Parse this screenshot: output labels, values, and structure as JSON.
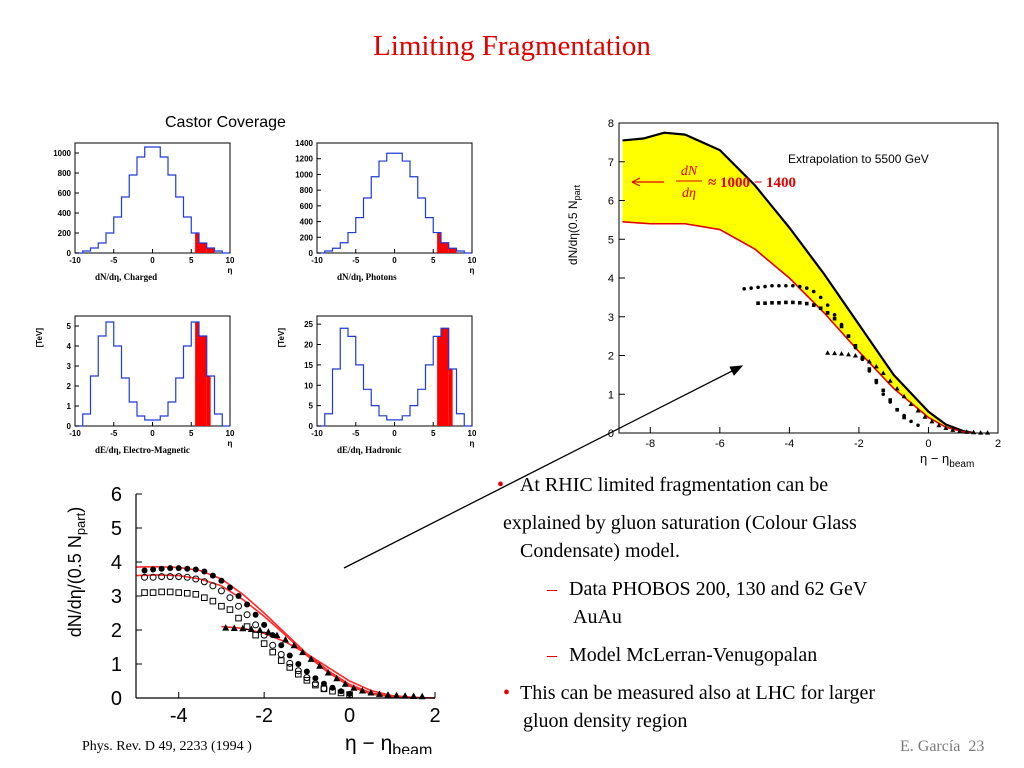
{
  "slide": {
    "title": "Limiting Fragmentation",
    "castor_label": "Castor Coverage",
    "reference": "Phys. Rev. D 49, 2233 (1994 )",
    "footer_author": "E. García",
    "footer_page": "23"
  },
  "bullets": {
    "b1_line1": " At RHIC limited fragmentation can be",
    "b1_line2": "explained by gluon saturation (Colour Glass",
    "b1_line3": "Condensate) model.",
    "s1_line1": "Data PHOBOS 200, 130 and 62 GeV",
    "s1_line2": "AuAu",
    "s2_line1": "Model McLerran-Venugopalan",
    "b2_line1": "This can be measured also at LHC for larger",
    "b2_line2": "gluon density region",
    "bullet_char": "•",
    "dash_char": "–"
  },
  "colors": {
    "title": "#e00000",
    "histogram": "#1f3bd6",
    "fill": "#ff0000",
    "band": "#ffff00",
    "model": "#ff2a2a"
  },
  "chart_data": [
    {
      "type": "histogram",
      "title": "",
      "xlabel": "dN/dη, Charged",
      "ylabel": "",
      "xunit": "η",
      "xlim": [
        -10,
        10
      ],
      "ylim": [
        0,
        1100
      ],
      "xticks": [
        "-10",
        "-5",
        "0",
        "5",
        "10"
      ],
      "yticks": [
        "0",
        "200",
        "400",
        "600",
        "800",
        "1000"
      ],
      "x": [
        -9.5,
        -8.5,
        -7.5,
        -6.5,
        -5.5,
        -4.5,
        -3.5,
        -2.5,
        -1.5,
        -0.5,
        0.5,
        1.5,
        2.5,
        3.5,
        4.5,
        5.5,
        6.5,
        7.5,
        8.5,
        9.5
      ],
      "values": [
        0,
        20,
        50,
        100,
        200,
        360,
        560,
        780,
        960,
        1060,
        1060,
        960,
        780,
        560,
        360,
        200,
        100,
        50,
        20,
        0
      ],
      "highlight_range": [
        5.5,
        8.0
      ]
    },
    {
      "type": "histogram",
      "title": "",
      "xlabel": "dN/dη, Photons",
      "ylabel": "",
      "xunit": "η",
      "xlim": [
        -10,
        10
      ],
      "ylim": [
        0,
        1400
      ],
      "xticks": [
        "-10",
        "-5",
        "0",
        "5",
        "10"
      ],
      "yticks": [
        "0",
        "200",
        "400",
        "600",
        "800",
        "1000",
        "1200",
        "1400"
      ],
      "x": [
        -9.5,
        -8.5,
        -7.5,
        -6.5,
        -5.5,
        -4.5,
        -3.5,
        -2.5,
        -1.5,
        -0.5,
        0.5,
        1.5,
        2.5,
        3.5,
        4.5,
        5.5,
        6.5,
        7.5,
        8.5,
        9.5
      ],
      "values": [
        0,
        25,
        60,
        130,
        260,
        450,
        700,
        970,
        1170,
        1270,
        1270,
        1170,
        970,
        700,
        450,
        260,
        130,
        60,
        25,
        0
      ],
      "highlight_range": [
        5.5,
        8.0
      ]
    },
    {
      "type": "histogram",
      "title": "",
      "xlabel": "dE/dη, Electro-Magnetic",
      "ylabel": "[TeV]",
      "xunit": "η",
      "xlim": [
        -10,
        10
      ],
      "ylim": [
        0,
        5.5
      ],
      "xticks": [
        "-10",
        "-5",
        "0",
        "5",
        "10"
      ],
      "yticks": [
        "0",
        "1",
        "2",
        "3",
        "4",
        "5"
      ],
      "x": [
        -9.5,
        -8.5,
        -7.5,
        -6.5,
        -5.5,
        -4.5,
        -3.5,
        -2.5,
        -1.5,
        -0.5,
        0.5,
        1.5,
        2.5,
        3.5,
        4.5,
        5.5,
        6.5,
        7.5,
        8.5,
        9.5
      ],
      "values": [
        0,
        0.6,
        2.5,
        4.5,
        5.2,
        4.0,
        2.4,
        1.2,
        0.5,
        0.3,
        0.3,
        0.5,
        1.2,
        2.4,
        4.0,
        5.2,
        4.5,
        2.5,
        0.6,
        0
      ],
      "highlight_range": [
        5.5,
        7.5
      ]
    },
    {
      "type": "histogram",
      "title": "",
      "xlabel": "dE/dη, Hadronic",
      "ylabel": "[TeV]",
      "xunit": "η",
      "xlim": [
        -10,
        10
      ],
      "ylim": [
        0,
        27
      ],
      "xticks": [
        "-10",
        "-5",
        "0",
        "5",
        "10"
      ],
      "yticks": [
        "0",
        "5",
        "10",
        "15",
        "20",
        "25"
      ],
      "x": [
        -9.5,
        -8.5,
        -7.5,
        -6.5,
        -5.5,
        -4.5,
        -3.5,
        -2.5,
        -1.5,
        -0.5,
        0.5,
        1.5,
        2.5,
        3.5,
        4.5,
        5.5,
        6.5,
        7.5,
        8.5,
        9.5
      ],
      "values": [
        0,
        3,
        14,
        24,
        22,
        15,
        9,
        5,
        2.5,
        1.5,
        1.5,
        2.5,
        5,
        9,
        15,
        22,
        24,
        14,
        3,
        0
      ],
      "highlight_range": [
        5.5,
        7.5
      ]
    },
    {
      "type": "line",
      "title": "",
      "annotation": "Extrapolation  to 5500 GeV",
      "formula": "≈ 1000 − 1400",
      "xlabel": "η − η",
      "xlabel_sub": "beam",
      "ylabel": "dN/dη(0.5 N",
      "ylabel_sub": "part",
      "xlim": [
        -8.9,
        2
      ],
      "ylim": [
        0,
        8
      ],
      "xticks": [
        "-8",
        "-6",
        "-4",
        "-2",
        "0",
        "2"
      ],
      "yticks": [
        "0",
        "1",
        "2",
        "3",
        "4",
        "5",
        "6",
        "7",
        "8"
      ],
      "series": [
        {
          "role": "upper",
          "x": [
            -8.8,
            -8.2,
            -7.6,
            -7.0,
            -6.0,
            -5.0,
            -4.0,
            -3.0,
            -2.0,
            -1.0,
            0.0,
            0.5,
            1.0,
            1.3
          ],
          "values": [
            7.55,
            7.6,
            7.75,
            7.7,
            7.3,
            6.4,
            5.3,
            4.1,
            2.8,
            1.5,
            0.55,
            0.22,
            0.05,
            0
          ]
        },
        {
          "role": "lower",
          "x": [
            -8.8,
            -8.0,
            -7.0,
            -6.0,
            -5.0,
            -4.0,
            -3.0,
            -2.0,
            -1.0,
            0.0,
            0.5,
            1.0,
            1.3
          ],
          "values": [
            5.45,
            5.4,
            5.4,
            5.25,
            4.75,
            4.0,
            3.1,
            2.1,
            1.15,
            0.4,
            0.15,
            0.03,
            0
          ]
        },
        {
          "role": "data-200",
          "x": [
            -5.3,
            -5.1,
            -4.9,
            -4.7,
            -4.5,
            -4.3,
            -4.1,
            -3.9,
            -3.7,
            -3.5,
            -3.3,
            -3.1,
            -2.9,
            -2.7,
            -2.5,
            -2.3,
            -2.1,
            -1.9,
            -1.7,
            -1.5,
            -1.3,
            -1.1,
            -0.9,
            -0.7,
            -0.5,
            -0.3
          ],
          "values": [
            3.72,
            3.74,
            3.76,
            3.78,
            3.8,
            3.8,
            3.8,
            3.8,
            3.78,
            3.74,
            3.65,
            3.5,
            3.3,
            3.05,
            2.8,
            2.5,
            2.2,
            1.9,
            1.6,
            1.3,
            1.0,
            0.8,
            0.6,
            0.45,
            0.3,
            0.2
          ]
        },
        {
          "role": "data-130",
          "x": [
            -4.9,
            -4.7,
            -4.5,
            -4.3,
            -4.1,
            -3.9,
            -3.7,
            -3.5,
            -3.3,
            -3.1,
            -2.9,
            -2.7,
            -2.5,
            -2.3,
            -2.1,
            -1.9,
            -1.7,
            -1.5,
            -1.3,
            -1.1,
            -0.9,
            -0.7
          ],
          "values": [
            3.35,
            3.35,
            3.36,
            3.36,
            3.37,
            3.37,
            3.36,
            3.34,
            3.3,
            3.22,
            3.1,
            2.95,
            2.75,
            2.5,
            2.25,
            1.95,
            1.65,
            1.35,
            1.1,
            0.85,
            0.6,
            0.4
          ]
        },
        {
          "role": "data-62",
          "x": [
            -2.9,
            -2.7,
            -2.5,
            -2.3,
            -2.1,
            -1.9,
            -1.7,
            -1.5,
            -1.3,
            -1.1,
            -0.9,
            -0.7,
            -0.5,
            -0.3,
            -0.1,
            0.1,
            0.3,
            0.5,
            0.7,
            0.9,
            1.1,
            1.3,
            1.5,
            1.7
          ],
          "values": [
            2.07,
            2.06,
            2.05,
            2.03,
            2.0,
            1.95,
            1.85,
            1.72,
            1.55,
            1.35,
            1.15,
            0.95,
            0.75,
            0.58,
            0.42,
            0.3,
            0.2,
            0.13,
            0.08,
            0.05,
            0.03,
            0.02,
            0.01,
            0.01
          ]
        }
      ]
    },
    {
      "type": "line",
      "title": "",
      "xlabel": "η − η",
      "xlabel_sub": "beam",
      "ylabel": "dN/dη/(0.5 N",
      "ylabel_sub": "part",
      "ylabel_close": ")",
      "xlim": [
        -5,
        2
      ],
      "ylim": [
        0,
        6
      ],
      "xticks": [
        "-4",
        "-2",
        "0",
        "2"
      ],
      "yticks": [
        "0",
        "1",
        "2",
        "3",
        "4",
        "5",
        "6"
      ],
      "series": [
        {
          "role": "model-200",
          "x": [
            -5.0,
            -4.5,
            -4.0,
            -3.5,
            -3.0,
            -2.5,
            -2.0,
            -1.5,
            -1.0,
            -0.5,
            0.0,
            0.5,
            1.0,
            1.5,
            2.0
          ],
          "values": [
            3.85,
            3.86,
            3.84,
            3.75,
            3.5,
            3.05,
            2.5,
            1.9,
            1.3,
            0.8,
            0.4,
            0.15,
            0.05,
            0.01,
            0
          ]
        },
        {
          "role": "model-130",
          "x": [
            -5.0,
            -4.5,
            -4.0,
            -3.5,
            -3.0,
            -2.5,
            -2.0,
            -1.5,
            -1.0,
            -0.5,
            0.0,
            0.5,
            1.0,
            1.5
          ],
          "values": [
            3.6,
            3.62,
            3.6,
            3.5,
            3.3,
            2.9,
            2.4,
            1.85,
            1.25,
            0.75,
            0.35,
            0.12,
            0.03,
            0
          ]
        },
        {
          "role": "model-62",
          "x": [
            -3.0,
            -2.5,
            -2.0,
            -1.5,
            -1.0,
            -0.5,
            0.0,
            0.5,
            1.0,
            1.5,
            2.0
          ],
          "values": [
            2.1,
            2.05,
            1.9,
            1.65,
            1.3,
            0.9,
            0.5,
            0.22,
            0.07,
            0.02,
            0
          ]
        },
        {
          "role": "data-200",
          "x": [
            -4.8,
            -4.6,
            -4.4,
            -4.2,
            -4.0,
            -3.8,
            -3.6,
            -3.4,
            -3.2,
            -3.0,
            -2.8,
            -2.6,
            -2.4,
            -2.2,
            -2.0,
            -1.8,
            -1.6,
            -1.4,
            -1.2,
            -1.0,
            -0.8,
            -0.6,
            -0.4,
            -0.2,
            0.0
          ],
          "values": [
            3.75,
            3.78,
            3.8,
            3.82,
            3.82,
            3.8,
            3.78,
            3.72,
            3.6,
            3.45,
            3.25,
            3.0,
            2.75,
            2.45,
            2.15,
            1.85,
            1.55,
            1.25,
            1.0,
            0.78,
            0.58,
            0.42,
            0.3,
            0.2,
            0.12
          ]
        },
        {
          "role": "data-130",
          "x": [
            -4.8,
            -4.6,
            -4.4,
            -4.2,
            -4.0,
            -3.8,
            -3.6,
            -3.4,
            -3.2,
            -3.0,
            -2.8,
            -2.6,
            -2.4,
            -2.2,
            -2.0,
            -1.8,
            -1.6,
            -1.4,
            -1.2,
            -1.0,
            -0.8,
            -0.6
          ],
          "values": [
            3.55,
            3.55,
            3.57,
            3.57,
            3.57,
            3.55,
            3.5,
            3.42,
            3.3,
            3.15,
            2.95,
            2.7,
            2.45,
            2.15,
            1.85,
            1.55,
            1.28,
            1.02,
            0.8,
            0.6,
            0.42,
            0.28
          ]
        },
        {
          "role": "data-open-squares",
          "x": [
            -4.8,
            -4.6,
            -4.4,
            -4.2,
            -4.0,
            -3.8,
            -3.6,
            -3.4,
            -3.2,
            -3.0,
            -2.8,
            -2.6,
            -2.4,
            -2.2,
            -2.0,
            -1.8,
            -1.6,
            -1.4,
            -1.2,
            -1.0,
            -0.8,
            -0.6,
            -0.4,
            -0.2,
            0.0
          ],
          "values": [
            3.1,
            3.1,
            3.12,
            3.12,
            3.1,
            3.08,
            3.05,
            2.95,
            2.85,
            2.7,
            2.6,
            2.35,
            2.1,
            1.85,
            1.6,
            1.35,
            1.1,
            0.9,
            0.7,
            0.52,
            0.38,
            0.27,
            0.2,
            0.15,
            0.1
          ]
        },
        {
          "role": "data-62",
          "x": [
            -2.9,
            -2.7,
            -2.5,
            -2.3,
            -2.1,
            -1.9,
            -1.7,
            -1.5,
            -1.3,
            -1.1,
            -0.9,
            -0.7,
            -0.5,
            -0.3,
            -0.1,
            0.1,
            0.3,
            0.5,
            0.7,
            0.9,
            1.1,
            1.3,
            1.5,
            1.7
          ],
          "values": [
            2.07,
            2.06,
            2.05,
            2.03,
            2.0,
            1.95,
            1.85,
            1.72,
            1.55,
            1.35,
            1.15,
            0.95,
            0.75,
            0.58,
            0.42,
            0.3,
            0.22,
            0.16,
            0.12,
            0.1,
            0.08,
            0.07,
            0.06,
            0.05
          ]
        }
      ]
    }
  ]
}
